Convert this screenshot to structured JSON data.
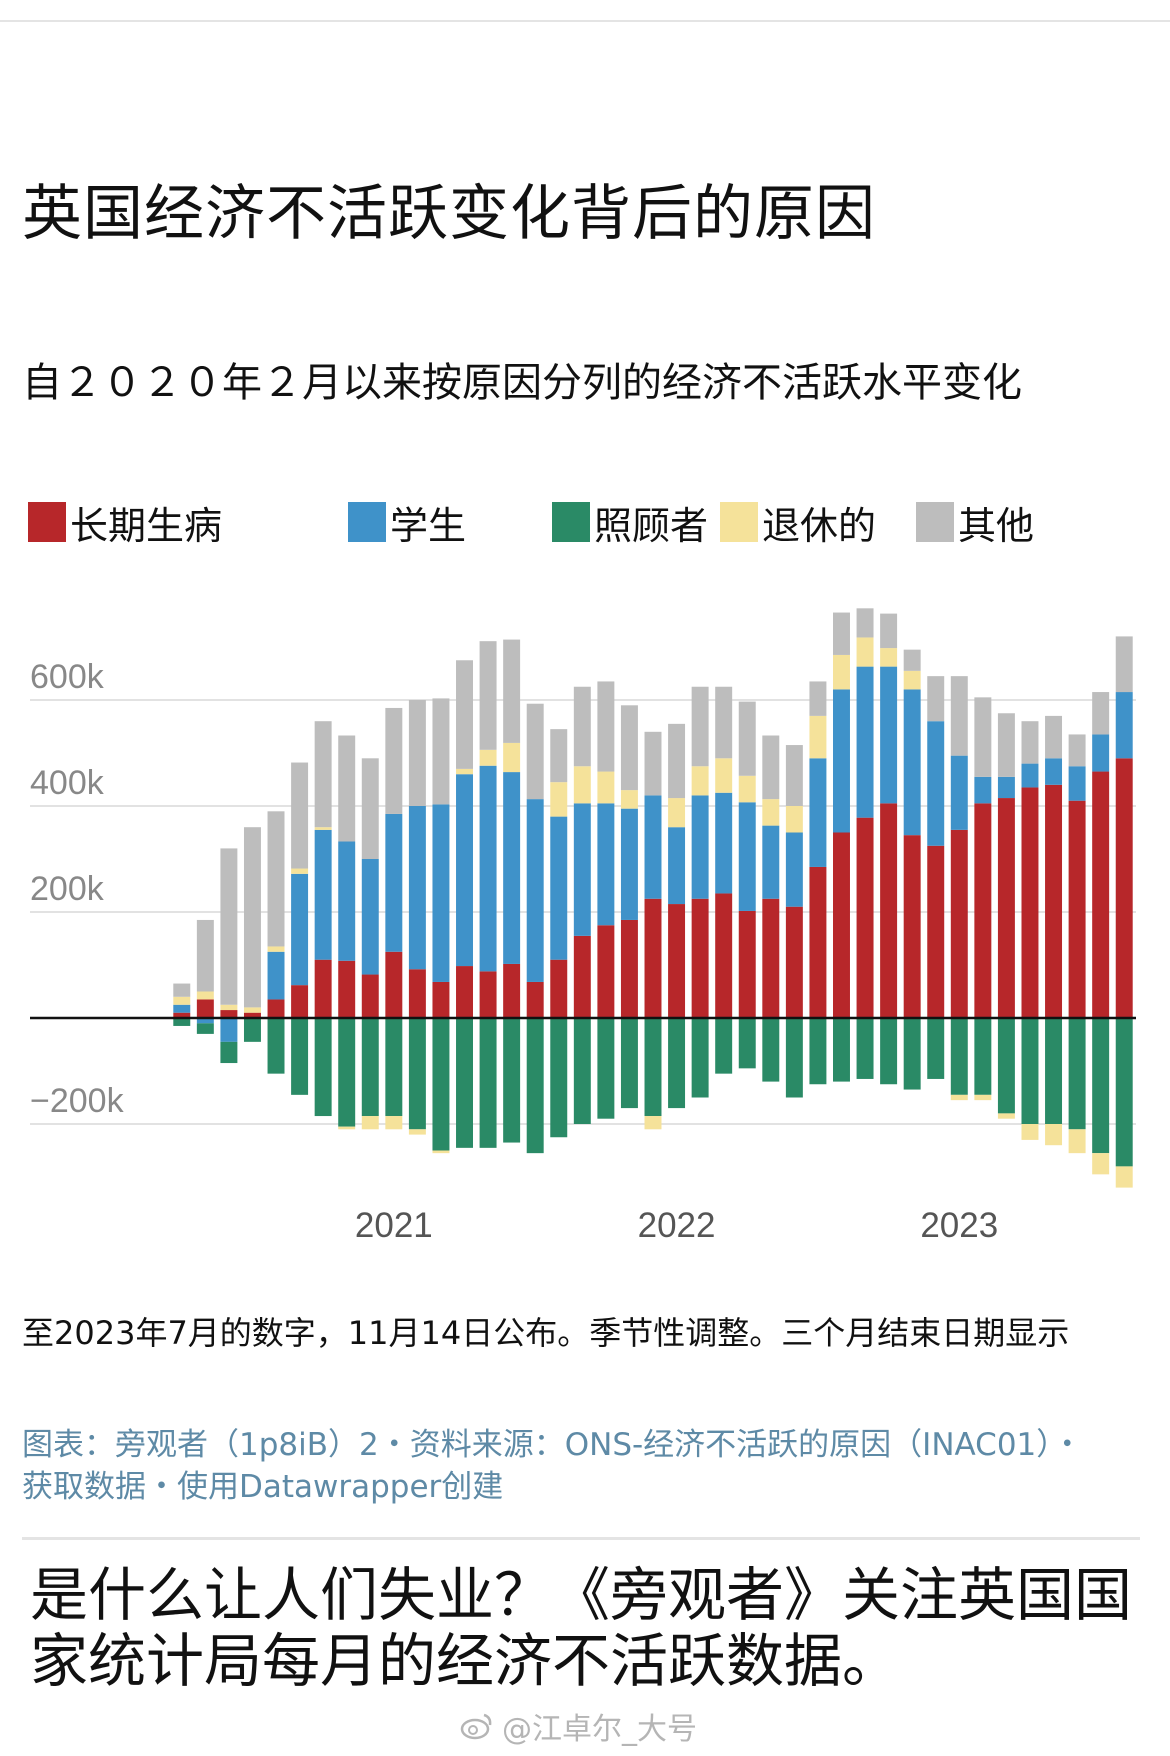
{
  "title": "英国经济不活跃变化背后的原因",
  "subtitle": "自２０２０年２月以来按原因分列的经济不活跃水平变化",
  "legend": [
    {
      "label": "长期生病",
      "color": "#b7272a"
    },
    {
      "label": "学生",
      "color": "#3f92c9"
    },
    {
      "label": "照顾者",
      "color": "#2a8a66"
    },
    {
      "label": "退休的",
      "color": "#f5e29a"
    },
    {
      "label": "其他",
      "color": "#bdbdbd"
    }
  ],
  "note": "至2023年7月的数字，11月14日公布。季节性调整。三个月结束日期显示",
  "source": "图表：旁观者（1p8iB）2・资料来源：ONS-经济不活跃的原因（INAC01）・获取数据・使用Datawrapper创建",
  "caption": "是什么让人们失业？《旁观者》关注英国国家统计局每月的经济不活跃数据。",
  "watermark": "@江卓尔_大号",
  "chart_data": {
    "type": "bar",
    "stacked": true,
    "ylim": [
      -330000,
      780000
    ],
    "y_ticks": [
      {
        "value": 600000,
        "label": "600k"
      },
      {
        "value": 400000,
        "label": "400k"
      },
      {
        "value": 200000,
        "label": "200k"
      },
      {
        "value": -200000,
        "label": "−200k"
      }
    ],
    "x_ticks": [
      {
        "index": 9,
        "label": "2021"
      },
      {
        "index": 21,
        "label": "2022"
      },
      {
        "index": 33,
        "label": "2023"
      }
    ],
    "categories": [
      "2020-03",
      "2020-04",
      "2020-05",
      "2020-06",
      "2020-07",
      "2020-08",
      "2020-09",
      "2020-10",
      "2020-11",
      "2020-12",
      "2021-01",
      "2021-02",
      "2021-03",
      "2021-04",
      "2021-05",
      "2021-06",
      "2021-07",
      "2021-08",
      "2021-09",
      "2021-10",
      "2021-11",
      "2021-12",
      "2022-01",
      "2022-02",
      "2022-03",
      "2022-04",
      "2022-05",
      "2022-06",
      "2022-07",
      "2022-08",
      "2022-09",
      "2022-10",
      "2022-11",
      "2022-12",
      "2023-01",
      "2023-02",
      "2023-03",
      "2023-04",
      "2023-05",
      "2023-06",
      "2023-07"
    ],
    "series": [
      {
        "name": "长期生病",
        "color": "#b7272a",
        "values": [
          10000,
          35000,
          15000,
          10000,
          35000,
          62000,
          110000,
          108000,
          82000,
          125000,
          92000,
          68000,
          98000,
          88000,
          102000,
          68000,
          110000,
          155000,
          175000,
          185000,
          225000,
          215000,
          225000,
          235000,
          202000,
          225000,
          210000,
          285000,
          350000,
          378000,
          405000,
          345000,
          325000,
          355000,
          405000,
          415000,
          435000,
          440000,
          410000,
          465000,
          490000
        ]
      },
      {
        "name": "学生",
        "color": "#3f92c9",
        "values": [
          15000,
          -10000,
          -45000,
          0,
          90000,
          210000,
          245000,
          225000,
          218000,
          260000,
          308000,
          335000,
          362000,
          388000,
          362000,
          345000,
          270000,
          250000,
          230000,
          210000,
          195000,
          145000,
          195000,
          190000,
          205000,
          138000,
          140000,
          205000,
          270000,
          285000,
          258000,
          275000,
          235000,
          140000,
          50000,
          40000,
          45000,
          50000,
          65000,
          70000,
          125000
        ]
      },
      {
        "name": "照顾者",
        "color": "#2a8a66",
        "values": [
          -15000,
          -20000,
          -40000,
          -45000,
          -105000,
          -145000,
          -185000,
          -205000,
          -185000,
          -185000,
          -210000,
          -250000,
          -245000,
          -245000,
          -235000,
          -255000,
          -225000,
          -200000,
          -190000,
          -170000,
          -185000,
          -170000,
          -150000,
          -105000,
          -95000,
          -120000,
          -150000,
          -125000,
          -120000,
          -115000,
          -125000,
          -135000,
          -115000,
          -145000,
          -145000,
          -180000,
          -200000,
          -200000,
          -210000,
          -255000,
          -280000
        ]
      },
      {
        "name": "退休的",
        "color": "#f5e29a",
        "values": [
          15000,
          15000,
          10000,
          10000,
          10000,
          10000,
          5000,
          -5000,
          -25000,
          -25000,
          -10000,
          -5000,
          10000,
          30000,
          55000,
          0,
          65000,
          70000,
          60000,
          35000,
          -25000,
          55000,
          55000,
          65000,
          50000,
          50000,
          50000,
          80000,
          65000,
          55000,
          35000,
          35000,
          0,
          -10000,
          -10000,
          -10000,
          -30000,
          -40000,
          -45000,
          -40000,
          -40000
        ]
      },
      {
        "name": "其他",
        "color": "#bdbdbd",
        "values": [
          25000,
          135000,
          295000,
          340000,
          255000,
          200000,
          200000,
          200000,
          190000,
          200000,
          200000,
          200000,
          205000,
          205000,
          195000,
          180000,
          100000,
          150000,
          170000,
          160000,
          120000,
          140000,
          150000,
          135000,
          140000,
          120000,
          115000,
          65000,
          80000,
          55000,
          65000,
          40000,
          85000,
          150000,
          150000,
          120000,
          80000,
          80000,
          60000,
          80000,
          105000
        ]
      }
    ]
  }
}
